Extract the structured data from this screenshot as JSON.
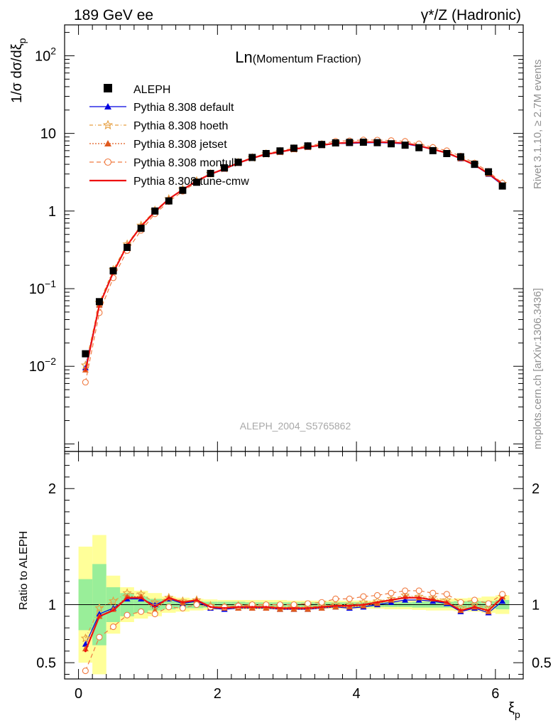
{
  "header": {
    "left": "189 GeV ee",
    "right": "γ*/Z (Hadronic)"
  },
  "side": {
    "rivet": "Rivet 3.1.10, ≥ 2.7M events",
    "mcplots": "mcplots.cern.ch [arXiv:1306.3436]"
  },
  "chart_data": {
    "type": "line",
    "title_main": "Ln",
    "title_sub": "(Momentum Fraction)",
    "watermark": "ALEPH_2004_S5765862",
    "ylabel_main": "1/σ dσ/dξ",
    "ylabel_sub": "p",
    "ylabel_ratio": "Ratio to ALEPH",
    "xlabel_main": "ξ",
    "xlabel_sub": "p",
    "xlim": [
      -0.2,
      6.4
    ],
    "ylim_main": [
      0.0008,
      250
    ],
    "ylim_ratio": [
      0.36,
      2.32
    ],
    "y_scale_main": "log",
    "x_ticks": [
      "0",
      "2",
      "4",
      "6"
    ],
    "y_ticks_main": [
      {
        "v": 0.01,
        "b": "10",
        "e": "−2"
      },
      {
        "v": 0.1,
        "b": "10",
        "e": "−1"
      },
      {
        "v": 1,
        "b": "1",
        "e": ""
      },
      {
        "v": 10,
        "b": "10",
        "e": ""
      },
      {
        "v": 100,
        "b": "10",
        "e": "2"
      }
    ],
    "y_ticks_ratio": [
      "0.5",
      "1",
      "2"
    ],
    "x": [
      0.1,
      0.3,
      0.5,
      0.7,
      0.9,
      1.1,
      1.3,
      1.5,
      1.7,
      1.9,
      2.1,
      2.3,
      2.5,
      2.7,
      2.9,
      3.1,
      3.3,
      3.5,
      3.7,
      3.9,
      4.1,
      4.3,
      4.5,
      4.7,
      4.9,
      5.1,
      5.3,
      5.5,
      5.7,
      5.9,
      6.1
    ],
    "data": {
      "name": "ALEPH",
      "color": "#000000",
      "values": [
        0.0145,
        0.068,
        0.17,
        0.34,
        0.6,
        1.0,
        1.35,
        1.85,
        2.35,
        3.05,
        3.6,
        4.25,
        4.9,
        5.5,
        5.95,
        6.45,
        6.9,
        7.2,
        7.55,
        7.65,
        7.7,
        7.6,
        7.35,
        7.05,
        6.55,
        6.0,
        5.5,
        5.0,
        4.0,
        3.2,
        2.1
      ],
      "stat_ratio": [
        0.22,
        0.35,
        0.15,
        0.1,
        0.07,
        0.05,
        0.04,
        0.03,
        0.03,
        0.025,
        0.025,
        0.025,
        0.02,
        0.02,
        0.02,
        0.02,
        0.02,
        0.02,
        0.02,
        0.02,
        0.02,
        0.02,
        0.02,
        0.02,
        0.025,
        0.025,
        0.025,
        0.03,
        0.03,
        0.03,
        0.04
      ],
      "tot_ratio": [
        0.5,
        0.6,
        0.25,
        0.15,
        0.12,
        0.1,
        0.07,
        0.06,
        0.05,
        0.045,
        0.04,
        0.04,
        0.04,
        0.04,
        0.04,
        0.035,
        0.035,
        0.035,
        0.035,
        0.035,
        0.035,
        0.035,
        0.04,
        0.04,
        0.045,
        0.05,
        0.05,
        0.055,
        0.06,
        0.07,
        0.08
      ]
    },
    "series": [
      {
        "name": "Pythia 8.308 default",
        "color": "#0000e0",
        "dash": "",
        "marker": "triangle",
        "ratio": [
          0.66,
          0.92,
          0.97,
          1.05,
          1.05,
          1.0,
          1.05,
          1.01,
          1.03,
          0.97,
          0.96,
          0.97,
          0.97,
          0.97,
          0.96,
          0.96,
          0.96,
          0.97,
          0.98,
          0.97,
          0.98,
          1.0,
          1.02,
          1.04,
          1.04,
          1.03,
          1.01,
          0.94,
          0.97,
          0.93,
          1.03
        ]
      },
      {
        "name": "Pythia 8.308 hoeth",
        "color": "#e69f40",
        "dash": "5,3,1,3",
        "marker": "star",
        "ratio": [
          0.71,
          0.97,
          1.03,
          1.1,
          1.09,
          1.02,
          1.06,
          1.03,
          1.04,
          0.99,
          0.98,
          0.99,
          0.99,
          0.99,
          0.98,
          0.98,
          0.98,
          0.99,
          1.0,
          1.0,
          1.02,
          1.03,
          1.05,
          1.08,
          1.07,
          1.06,
          1.04,
          0.97,
          1.0,
          0.97,
          1.07
        ]
      },
      {
        "name": "Pythia 8.308 jetset",
        "color": "#e05a1e",
        "dash": "2,2",
        "marker": "triangle",
        "ratio": [
          0.62,
          0.9,
          0.96,
          1.07,
          1.07,
          0.95,
          1.06,
          1.02,
          1.04,
          0.98,
          0.97,
          0.97,
          0.97,
          0.97,
          0.96,
          0.96,
          0.96,
          0.97,
          0.98,
          0.98,
          0.99,
          1.01,
          1.04,
          1.07,
          1.06,
          1.05,
          1.02,
          0.95,
          0.98,
          0.94,
          1.07
        ]
      },
      {
        "name": "Pythia 8.308 montull",
        "color": "#f07a40",
        "dash": "6,4",
        "marker": "circle",
        "ratio": [
          0.43,
          0.72,
          0.81,
          0.91,
          0.94,
          0.92,
          0.98,
          0.97,
          1.0,
          0.98,
          0.98,
          0.99,
          1.0,
          1.0,
          1.0,
          1.0,
          1.01,
          1.02,
          1.05,
          1.05,
          1.07,
          1.08,
          1.1,
          1.12,
          1.12,
          1.1,
          1.09,
          1.02,
          1.04,
          1.01,
          1.09
        ]
      },
      {
        "name": "Pythia 8.308 tune-cmw",
        "color": "#ee1010",
        "dash": "",
        "marker": "none",
        "ratio": [
          0.6,
          0.9,
          0.95,
          1.06,
          1.06,
          0.98,
          1.06,
          1.02,
          1.04,
          0.98,
          0.97,
          0.98,
          0.98,
          0.98,
          0.97,
          0.97,
          0.97,
          0.98,
          0.99,
          0.99,
          1.0,
          1.02,
          1.04,
          1.06,
          1.06,
          1.04,
          1.02,
          0.95,
          0.98,
          0.95,
          1.06
        ]
      }
    ]
  }
}
